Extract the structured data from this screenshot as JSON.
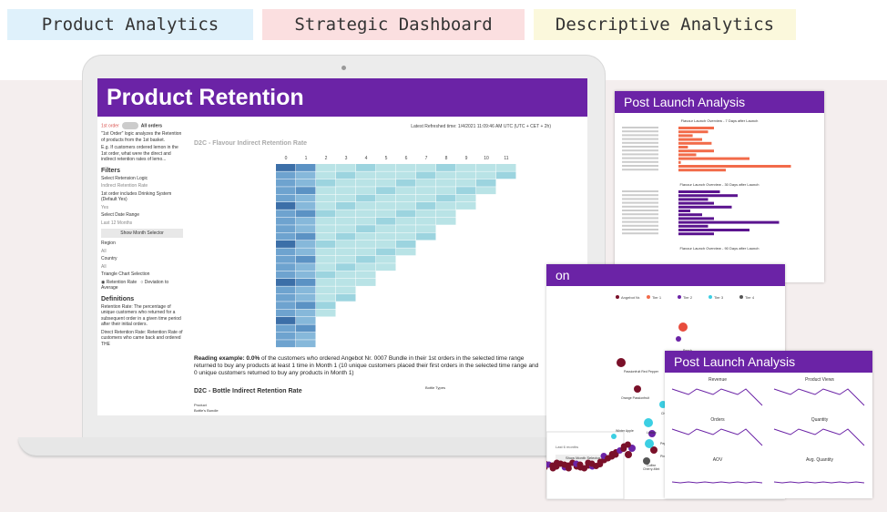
{
  "tags": [
    {
      "label": "Product Analytics",
      "color": "#dff1fb"
    },
    {
      "label": "Strategic Dashboard",
      "color": "#fbdfe0"
    },
    {
      "label": "Descriptive Analytics",
      "color": "#fbf8dc"
    }
  ],
  "dashboard": {
    "title": "Product Retention",
    "refresh": "Latest Refreshed time: 1/4/2021 11:09:46 AM UTC (UTC + CET + 2h)",
    "sidebar": {
      "toggle_left": "1st order",
      "toggle_right": "All orders",
      "intro": "\"1st Order\" logic analyzes the Retention of products from the 1st basket.",
      "example": "E.g. If customers ordered lemon in the 1st order, what were the direct and indirect retention rates of lemo...",
      "filters": "Filters",
      "f1_label": "Select Retension Logic",
      "f1_value": "Indirect Retention Rate",
      "f2_label": "1st order includes Drinking System (Default Yes)",
      "f2_value": "Yes",
      "f3_label": "Select Date Range",
      "f3_value": "Last 12 Months",
      "month_btn": "Show Month Selector",
      "region": "Region",
      "region_v": "All",
      "country": "Country",
      "country_v": "All",
      "triangle": "Triangle Chart Selection",
      "r1": "Retention Rate",
      "r2": "Deviation to Average",
      "defs": "Definitions",
      "def1": "Retention Rate: The percentage of unique customers who returned for a subsequent order in a given time period after their initial orders.",
      "def2": "Direct Retention Rate: Retention Rate of customers who came back and ordered THE"
    },
    "heat_title": "D2C - Flavour Indirect Retention Rate",
    "heat_cols": [
      "0",
      "1",
      "2",
      "3",
      "4",
      "5",
      "6",
      "7",
      "8",
      "9",
      "10",
      "11"
    ],
    "note_prefix": "Reading example: 0.0%",
    "note_text": " of the customers who ordered Angebot Nr. 0007 Bundle in their 1st orders in the selected time range returned to buy any products at least 1 time in Month 1 (10 unique customers placed their first orders in the selected time range and 0 unique customers returned to buy any products in Month 1)",
    "bottle_title": "D2C - Bottle Indirect Retention Rate",
    "bottle_type": "Bottle Types",
    "product_label": "Product",
    "product_row": "Bottle's Bundle"
  },
  "panel1": {
    "title": "Post Launch Analysis",
    "sub1": "Flavour Launch Overview - 7 Days after Launch",
    "sub2": "Flavour Launch Overview - 30 Days after Launch",
    "sub3": "Flavour Launch Overview - 90 Days after Launch",
    "orange": "#f26b4a",
    "purple": "#5b148f"
  },
  "panel2": {
    "title_fragment": "on",
    "legend": [
      "Angebot Nr.",
      "Tier 1",
      "Tier 2",
      "Tier 3",
      "Tier 4"
    ],
    "labels": [
      "Peach",
      "Passionfruit Red Pepper",
      "Orange Passionfruit",
      "Cherry",
      "Lemon",
      "Red Tea - Peach",
      "Winter Apple",
      "Pineapple",
      "Cherry-Mint",
      "Coffee",
      "Peppermint"
    ],
    "axis": "Aggregated Retention Rate of Each Product",
    "btn": "Show Month Selector",
    "f_label": "Last 6 months"
  },
  "panel3": {
    "title": "Post Launch Analysis",
    "charts": [
      "Revenue",
      "Product Views",
      "Orders",
      "Quantity",
      "AOV",
      "Avg. Quantity"
    ]
  }
}
